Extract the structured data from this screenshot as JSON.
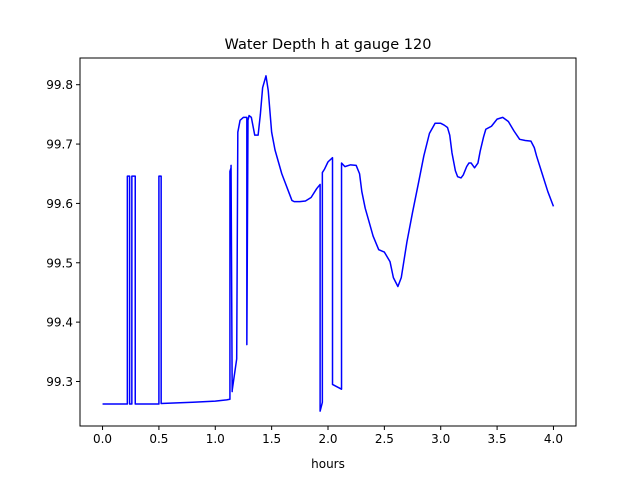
{
  "chart_data": {
    "type": "line",
    "title": "Water Depth h at gauge 120",
    "xlabel": "hours",
    "ylabel": "",
    "xlim": [
      -0.2,
      4.2
    ],
    "ylim": [
      99.225,
      99.845
    ],
    "xticks": [
      0.0,
      0.5,
      1.0,
      1.5,
      2.0,
      2.5,
      3.0,
      3.5,
      4.0
    ],
    "xtick_labels": [
      "0.0",
      "0.5",
      "1.0",
      "1.5",
      "2.0",
      "2.5",
      "3.0",
      "3.5",
      "4.0"
    ],
    "yticks": [
      99.3,
      99.4,
      99.5,
      99.6,
      99.7,
      99.8
    ],
    "ytick_labels": [
      "99.3",
      "99.4",
      "99.5",
      "99.6",
      "99.7",
      "99.8"
    ],
    "grid": false,
    "line_color": "#0000ff",
    "series": [
      {
        "x": [
          0.0,
          0.22,
          0.22,
          0.24,
          0.24,
          0.26,
          0.26,
          0.29,
          0.29,
          0.31,
          0.31,
          0.5,
          0.5,
          0.52,
          0.52,
          0.8,
          1.0,
          1.1,
          1.13,
          1.13,
          1.14,
          1.14,
          1.15,
          1.15,
          1.19,
          1.19,
          1.2,
          1.22,
          1.25,
          1.28,
          1.28,
          1.29,
          1.29,
          1.3,
          1.32,
          1.35,
          1.38,
          1.4,
          1.42,
          1.45,
          1.47,
          1.5,
          1.53,
          1.56,
          1.59,
          1.62,
          1.65,
          1.68,
          1.7,
          1.75,
          1.8,
          1.85,
          1.9,
          1.93,
          1.93,
          1.95,
          1.95,
          1.97,
          2.0,
          2.04,
          2.04,
          2.12,
          2.12,
          2.15,
          2.2,
          2.25,
          2.28,
          2.3,
          2.33,
          2.36,
          2.4,
          2.45,
          2.5,
          2.55,
          2.58,
          2.62,
          2.65,
          2.7,
          2.75,
          2.8,
          2.85,
          2.9,
          2.95,
          3.0,
          3.03,
          3.06,
          3.08,
          3.1,
          3.13,
          3.15,
          3.18,
          3.2,
          3.23,
          3.25,
          3.27,
          3.3,
          3.33,
          3.35,
          3.38,
          3.4,
          3.45,
          3.5,
          3.55,
          3.6,
          3.65,
          3.7,
          3.75,
          3.8,
          3.83,
          3.85,
          3.9,
          3.95,
          4.0
        ],
        "y": [
          99.262,
          99.262,
          99.646,
          99.646,
          99.262,
          99.262,
          99.646,
          99.646,
          99.262,
          99.262,
          99.262,
          99.262,
          99.646,
          99.646,
          99.263,
          99.265,
          99.267,
          99.269,
          99.27,
          99.654,
          99.66,
          99.664,
          99.283,
          99.285,
          99.338,
          99.338,
          99.72,
          99.74,
          99.745,
          99.745,
          99.362,
          99.73,
          99.74,
          99.748,
          99.745,
          99.715,
          99.715,
          99.75,
          99.795,
          99.815,
          99.79,
          99.72,
          99.69,
          99.67,
          99.65,
          99.635,
          99.62,
          99.605,
          99.603,
          99.603,
          99.604,
          99.61,
          99.625,
          99.632,
          99.25,
          99.265,
          99.652,
          99.658,
          99.67,
          99.677,
          99.295,
          99.287,
          99.668,
          99.662,
          99.665,
          99.664,
          99.65,
          99.62,
          99.592,
          99.572,
          99.545,
          99.522,
          99.518,
          99.502,
          99.475,
          99.46,
          99.475,
          99.535,
          99.585,
          99.632,
          99.68,
          99.718,
          99.735,
          99.735,
          99.732,
          99.728,
          99.715,
          99.685,
          99.655,
          99.645,
          99.643,
          99.648,
          99.662,
          99.668,
          99.668,
          99.66,
          99.668,
          99.688,
          99.712,
          99.725,
          99.73,
          99.742,
          99.745,
          99.738,
          99.722,
          99.708,
          99.706,
          99.705,
          99.694,
          99.68,
          99.65,
          99.62,
          99.595
        ]
      }
    ]
  }
}
